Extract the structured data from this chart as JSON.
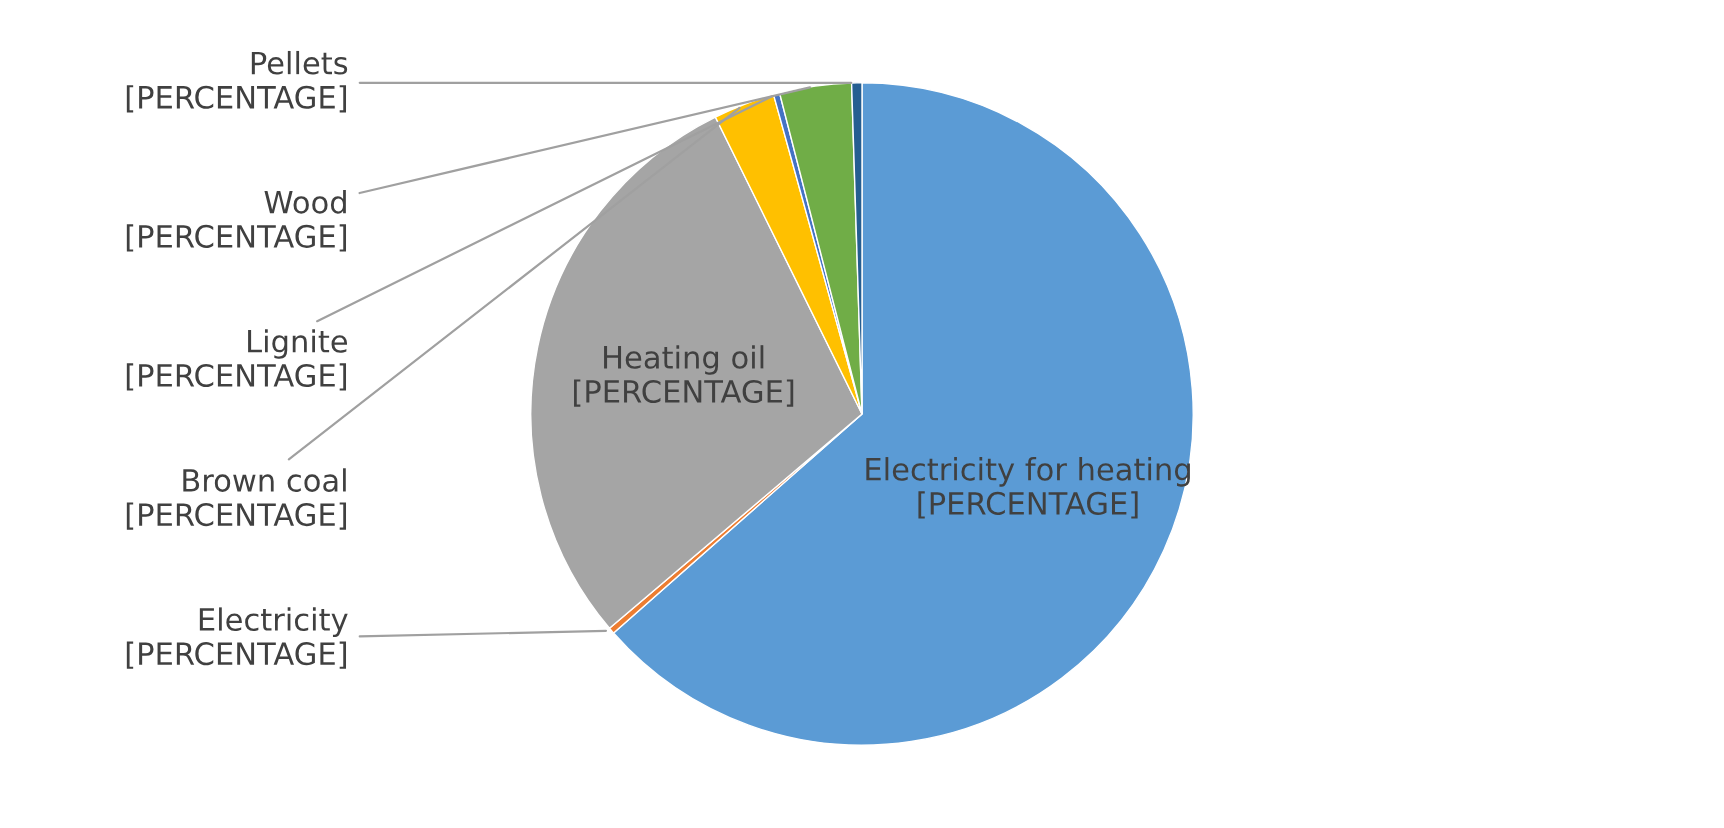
{
  "chart_data": {
    "type": "pie",
    "categories": [
      "Electricity for heating",
      "Electricity",
      "Heating oil",
      "Brown coal",
      "Lignite",
      "Wood",
      "Pellets"
    ],
    "values": [
      63.5,
      0.3,
      28.9,
      3.0,
      0.3,
      3.5,
      0.5
    ],
    "colors": [
      "#5b9bd5",
      "#ed7d31",
      "#a5a5a5",
      "#ffc000",
      "#4472c4",
      "#70ad47",
      "#255e91"
    ],
    "value_labels": [
      "[PERCENTAGE]",
      "[PERCENTAGE]",
      "[PERCENTAGE]",
      "[PERCENTAGE]",
      "[PERCENTAGE]",
      "[PERCENTAGE]",
      "[PERCENTAGE]"
    ],
    "legend": false
  }
}
